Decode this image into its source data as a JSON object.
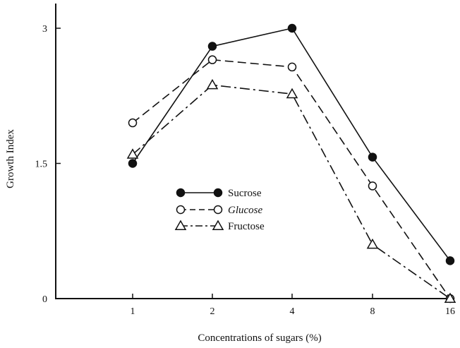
{
  "chart_data": {
    "type": "line",
    "x": [
      "1",
      "2",
      "4",
      "8",
      "16"
    ],
    "xlabel": "Concentrations of sugars (%)",
    "ylabel": "Growth Index",
    "ylim": [
      0,
      3.25
    ],
    "yticks": [
      "0",
      "1.5",
      "3"
    ],
    "grid": false,
    "legend": "center-left",
    "series": [
      {
        "name": "Sucrose",
        "values": [
          1.5,
          2.8,
          3.0,
          1.57,
          0.42
        ],
        "marker": "filled-circle",
        "dash": "solid"
      },
      {
        "name": "Glucose",
        "values": [
          1.95,
          2.65,
          2.57,
          1.25,
          0.0
        ],
        "marker": "open-circle",
        "dash": "dashed"
      },
      {
        "name": "Fructose",
        "values": [
          1.6,
          2.37,
          2.27,
          0.6,
          0.0
        ],
        "marker": "open-triangle",
        "dash": "dash-dot"
      }
    ]
  }
}
